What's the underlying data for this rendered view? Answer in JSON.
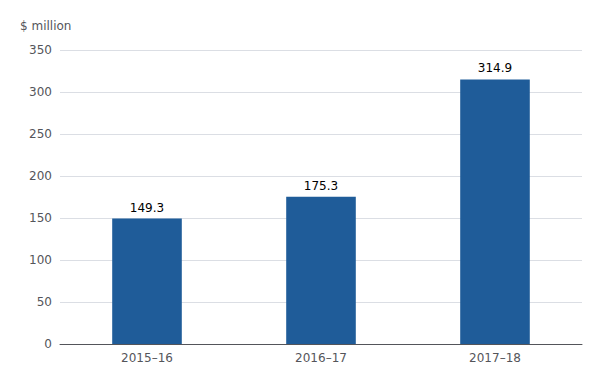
{
  "chart_data": {
    "type": "bar",
    "ylabel": "$ million",
    "categories": [
      "2015–16",
      "2016–17",
      "2017–18"
    ],
    "values": [
      149.3,
      175.3,
      314.9
    ],
    "color": "#1F5C99",
    "ylim": [
      0,
      350
    ],
    "yticks": [
      0,
      50,
      100,
      150,
      200,
      250,
      300,
      350
    ],
    "grid": true,
    "data_labels": true
  }
}
